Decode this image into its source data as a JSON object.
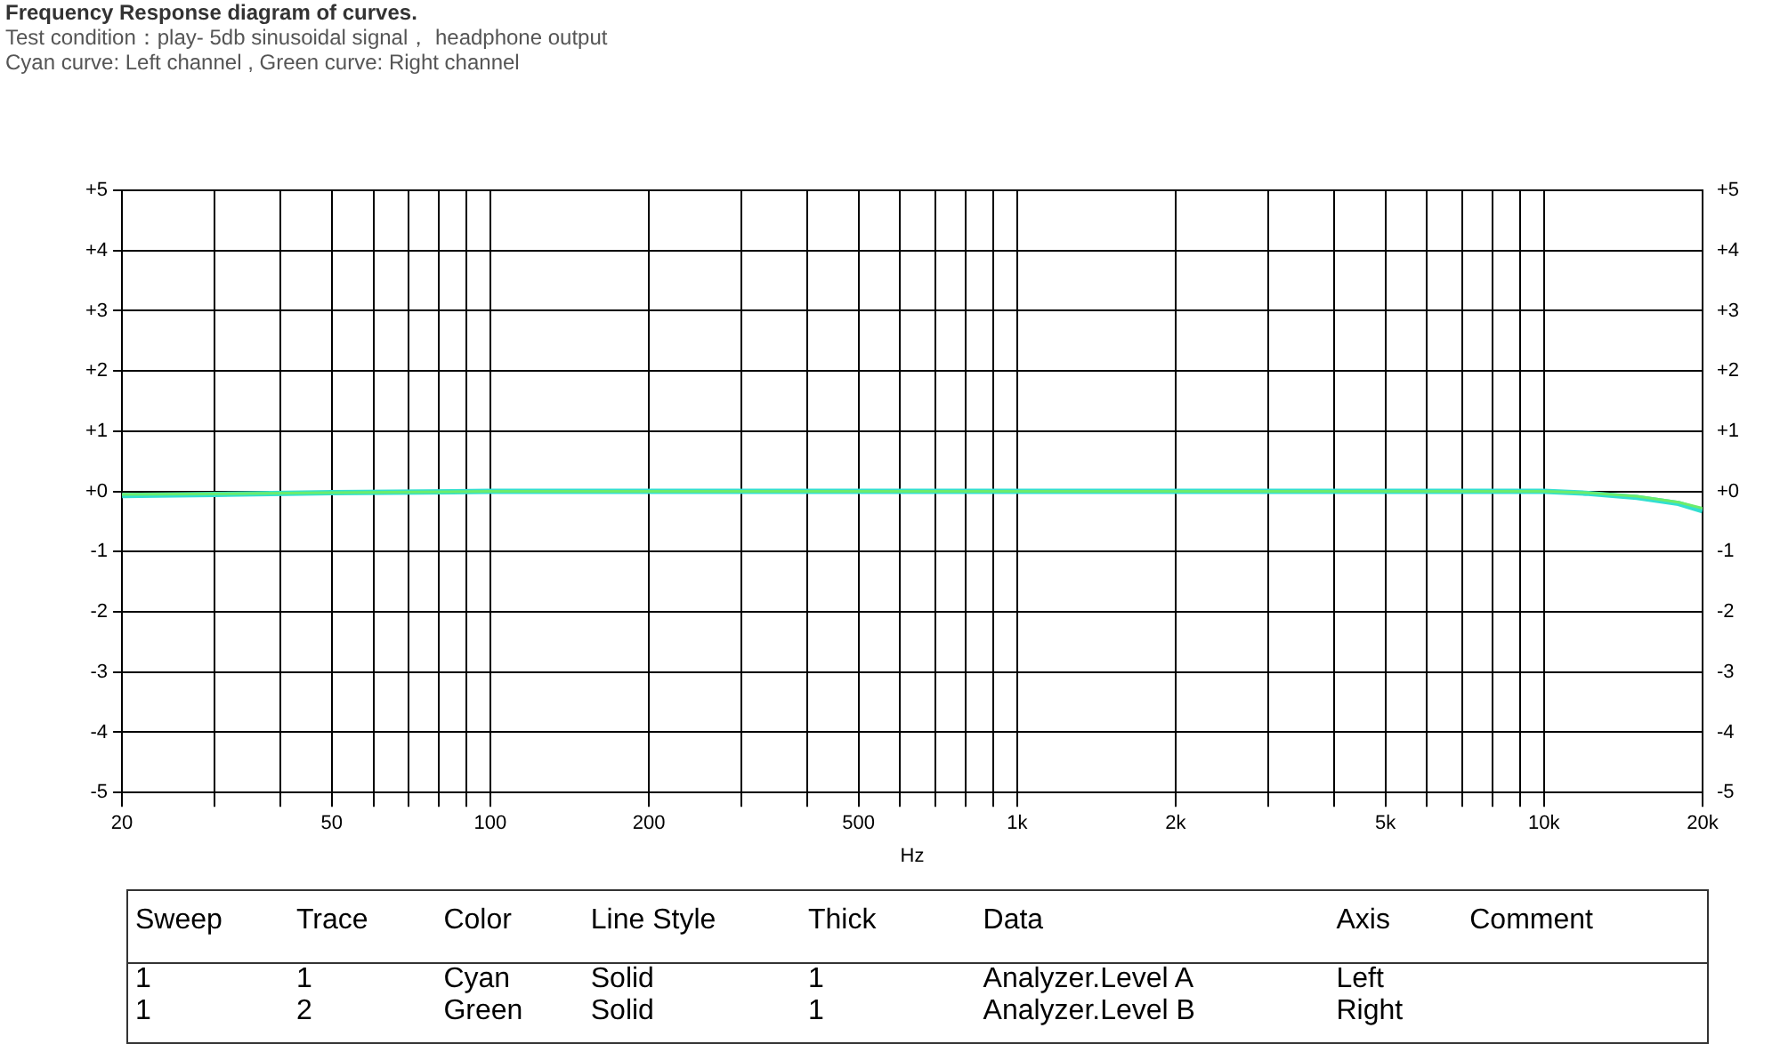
{
  "chart_data": {
    "type": "line",
    "title": "Frequency Response diagram of curves.",
    "subtitle": "Test condition：play- 5db sinusoidal signal， headphone output",
    "annotations": [
      "Cyan curve: Left channel , Green curve: Right channel",
      "Sweep\tTrace\tColor\tLine Style\tThick\tData\tAxis\tComment",
      "1\t1\tCyan\tSolid\t1\tAnalyzer.Level A\tLeft\t",
      "1\t2\tGreen\tSolid\t1\tAnalyzer.Level B\tRight\t"
    ],
    "xlabel": "Hz",
    "log": "x",
    "grid": true,
    "legend": false,
    "marker": "none",
    "line_style": "solid",
    "x": [
      20,
      30,
      50,
      100,
      1000,
      10000,
      12000,
      15000,
      18000,
      20000
    ],
    "series": [
      {
        "color": "#33dfd0",
        "values": [
          -0.07,
          -0.05,
          -0.02,
          0,
          0,
          0,
          -0.03,
          -0.1,
          -0.2,
          -0.32
        ]
      },
      {
        "color": "#6cec6c",
        "values": [
          -0.05,
          -0.04,
          -0.02,
          0,
          0,
          0,
          -0.02,
          -0.08,
          -0.18,
          -0.28
        ]
      }
    ],
    "xlim": [
      20,
      20000
    ],
    "xticks": [
      20,
      {
        "value": 30,
        "label": null
      },
      {
        "value": 40,
        "label": null
      },
      50,
      {
        "value": 60,
        "label": null
      },
      {
        "value": 70,
        "label": null
      },
      {
        "value": 80,
        "label": null
      },
      {
        "value": 90,
        "label": null
      },
      100,
      200,
      {
        "value": 300,
        "label": null
      },
      {
        "value": 400,
        "label": null
      },
      500,
      {
        "value": 600,
        "label": null
      },
      {
        "value": 700,
        "label": null
      },
      {
        "value": 800,
        "label": null
      },
      {
        "value": 900,
        "label": null
      },
      {
        "value": 1000,
        "label": "1k"
      },
      {
        "value": 2000,
        "label": "2k"
      },
      {
        "value": 3000,
        "label": null
      },
      {
        "value": 4000,
        "label": null
      },
      {
        "value": 5000,
        "label": "5k"
      },
      {
        "value": 6000,
        "label": null
      },
      {
        "value": 7000,
        "label": null
      },
      {
        "value": 8000,
        "label": null
      },
      {
        "value": 9000,
        "label": null
      },
      {
        "value": 10000,
        "label": "10k"
      },
      {
        "value": 20000,
        "label": "20k"
      }
    ],
    "ylim": [
      -5,
      5
    ],
    "yticks": [
      -5,
      -4,
      -3,
      -2,
      -1,
      {
        "value": 0,
        "label": "+0"
      },
      {
        "value": 1,
        "label": "+1"
      },
      {
        "value": 2,
        "label": "+2"
      },
      {
        "value": 3,
        "label": "+3"
      },
      {
        "value": 4,
        "label": "+4"
      },
      {
        "value": 5,
        "label": "+5"
      }
    ],
    "y2lim": [
      -5,
      5
    ],
    "y2ticks": [
      -5,
      -4,
      -3,
      -2,
      -1,
      {
        "value": 0,
        "label": "+0"
      },
      {
        "value": 1,
        "label": "+1"
      },
      {
        "value": 2,
        "label": "+2"
      },
      {
        "value": 3,
        "label": "+3"
      },
      {
        "value": 4,
        "label": "+4"
      },
      {
        "value": 5,
        "label": "+5"
      }
    ]
  }
}
